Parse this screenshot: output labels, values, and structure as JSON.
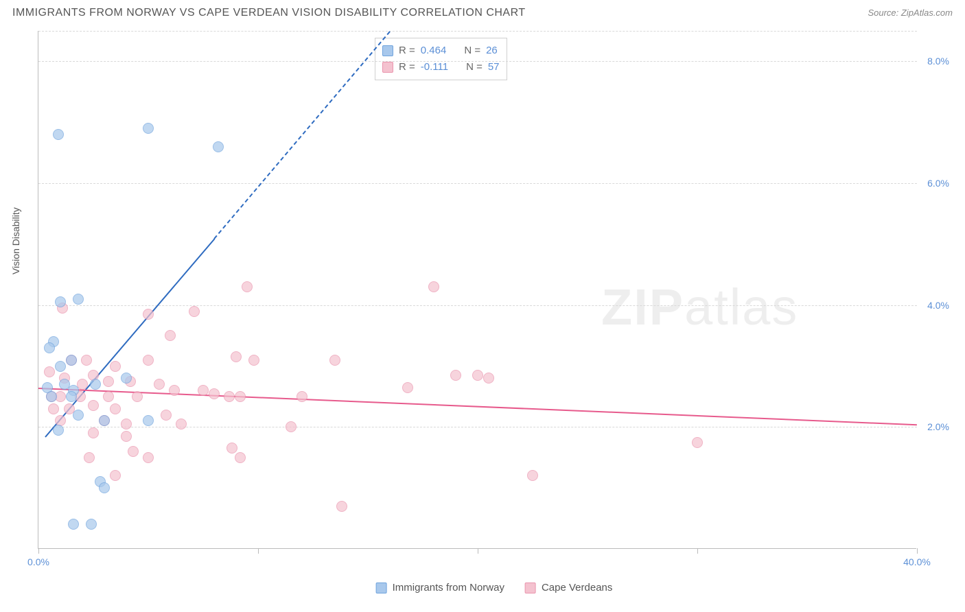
{
  "header": {
    "title": "IMMIGRANTS FROM NORWAY VS CAPE VERDEAN VISION DISABILITY CORRELATION CHART",
    "source_prefix": "Source: ",
    "source_name": "ZipAtlas.com"
  },
  "watermark": {
    "part1": "ZIP",
    "part2": "atlas"
  },
  "chart": {
    "type": "scatter",
    "y_axis_title": "Vision Disability",
    "background_color": "#ffffff",
    "grid_color": "#d8d8d8",
    "axis_color": "#bbbbbb",
    "tick_label_color": "#5b8fd6",
    "xlim": [
      0,
      40
    ],
    "ylim": [
      0,
      8.5
    ],
    "x_ticks": [
      0,
      10,
      20,
      30,
      40
    ],
    "x_tick_labels": [
      "0.0%",
      "",
      "",
      "",
      "40.0%"
    ],
    "y_ticks": [
      2,
      4,
      6,
      8
    ],
    "y_tick_labels": [
      "2.0%",
      "4.0%",
      "6.0%",
      "8.0%"
    ],
    "marker_size": 16,
    "marker_opacity": 0.7,
    "series": [
      {
        "name": "Immigrants from Norway",
        "fill_color": "#a8c8ec",
        "border_color": "#6fa3dd",
        "line_color": "#2e6bc0",
        "r": "0.464",
        "n": "26",
        "trend": {
          "x1": 0.3,
          "y1": 1.85,
          "x2": 8.0,
          "y2": 5.1,
          "solid_until_x": 8.0,
          "dash_to_x": 16.0,
          "dash_to_y": 8.5
        },
        "points": [
          [
            0.9,
            6.8
          ],
          [
            5.0,
            6.9
          ],
          [
            8.2,
            6.6
          ],
          [
            1.0,
            4.05
          ],
          [
            1.8,
            4.1
          ],
          [
            0.7,
            3.4
          ],
          [
            0.5,
            3.3
          ],
          [
            1.0,
            3.0
          ],
          [
            1.5,
            3.1
          ],
          [
            0.4,
            2.65
          ],
          [
            1.2,
            2.7
          ],
          [
            1.6,
            2.6
          ],
          [
            2.6,
            2.7
          ],
          [
            4.0,
            2.8
          ],
          [
            0.6,
            2.5
          ],
          [
            1.5,
            2.5
          ],
          [
            1.8,
            2.2
          ],
          [
            3.0,
            2.1
          ],
          [
            5.0,
            2.1
          ],
          [
            0.9,
            1.95
          ],
          [
            2.8,
            1.1
          ],
          [
            3.0,
            1.0
          ],
          [
            1.6,
            0.4
          ],
          [
            2.4,
            0.4
          ]
        ]
      },
      {
        "name": "Cape Verdeans",
        "fill_color": "#f4c2cf",
        "border_color": "#ea94ad",
        "line_color": "#e75a8c",
        "r": "-0.111",
        "n": "57",
        "trend": {
          "x1": 0,
          "y1": 2.65,
          "x2": 40,
          "y2": 2.05
        },
        "points": [
          [
            1.1,
            3.95
          ],
          [
            5.0,
            3.85
          ],
          [
            9.5,
            4.3
          ],
          [
            7.1,
            3.9
          ],
          [
            6.0,
            3.5
          ],
          [
            18.0,
            4.3
          ],
          [
            1.5,
            3.1
          ],
          [
            2.2,
            3.1
          ],
          [
            3.5,
            3.0
          ],
          [
            5.0,
            3.1
          ],
          [
            9.0,
            3.15
          ],
          [
            9.8,
            3.1
          ],
          [
            13.5,
            3.1
          ],
          [
            0.5,
            2.9
          ],
          [
            1.2,
            2.8
          ],
          [
            2.0,
            2.7
          ],
          [
            2.5,
            2.85
          ],
          [
            3.2,
            2.75
          ],
          [
            4.2,
            2.75
          ],
          [
            5.5,
            2.7
          ],
          [
            6.2,
            2.6
          ],
          [
            7.5,
            2.6
          ],
          [
            19.0,
            2.85
          ],
          [
            20.0,
            2.85
          ],
          [
            0.6,
            2.5
          ],
          [
            1.0,
            2.5
          ],
          [
            1.9,
            2.5
          ],
          [
            3.2,
            2.5
          ],
          [
            4.5,
            2.5
          ],
          [
            8.0,
            2.55
          ],
          [
            8.7,
            2.5
          ],
          [
            9.2,
            2.5
          ],
          [
            12.0,
            2.5
          ],
          [
            16.8,
            2.65
          ],
          [
            20.5,
            2.8
          ],
          [
            0.7,
            2.3
          ],
          [
            1.4,
            2.3
          ],
          [
            2.5,
            2.35
          ],
          [
            3.5,
            2.3
          ],
          [
            5.8,
            2.2
          ],
          [
            1.0,
            2.1
          ],
          [
            3.0,
            2.1
          ],
          [
            4.0,
            2.05
          ],
          [
            6.5,
            2.05
          ],
          [
            11.5,
            2.0
          ],
          [
            2.5,
            1.9
          ],
          [
            4.0,
            1.85
          ],
          [
            4.3,
            1.6
          ],
          [
            8.8,
            1.65
          ],
          [
            30.0,
            1.75
          ],
          [
            2.3,
            1.5
          ],
          [
            5.0,
            1.5
          ],
          [
            9.2,
            1.5
          ],
          [
            3.5,
            1.2
          ],
          [
            22.5,
            1.2
          ],
          [
            13.8,
            0.7
          ]
        ]
      }
    ]
  }
}
